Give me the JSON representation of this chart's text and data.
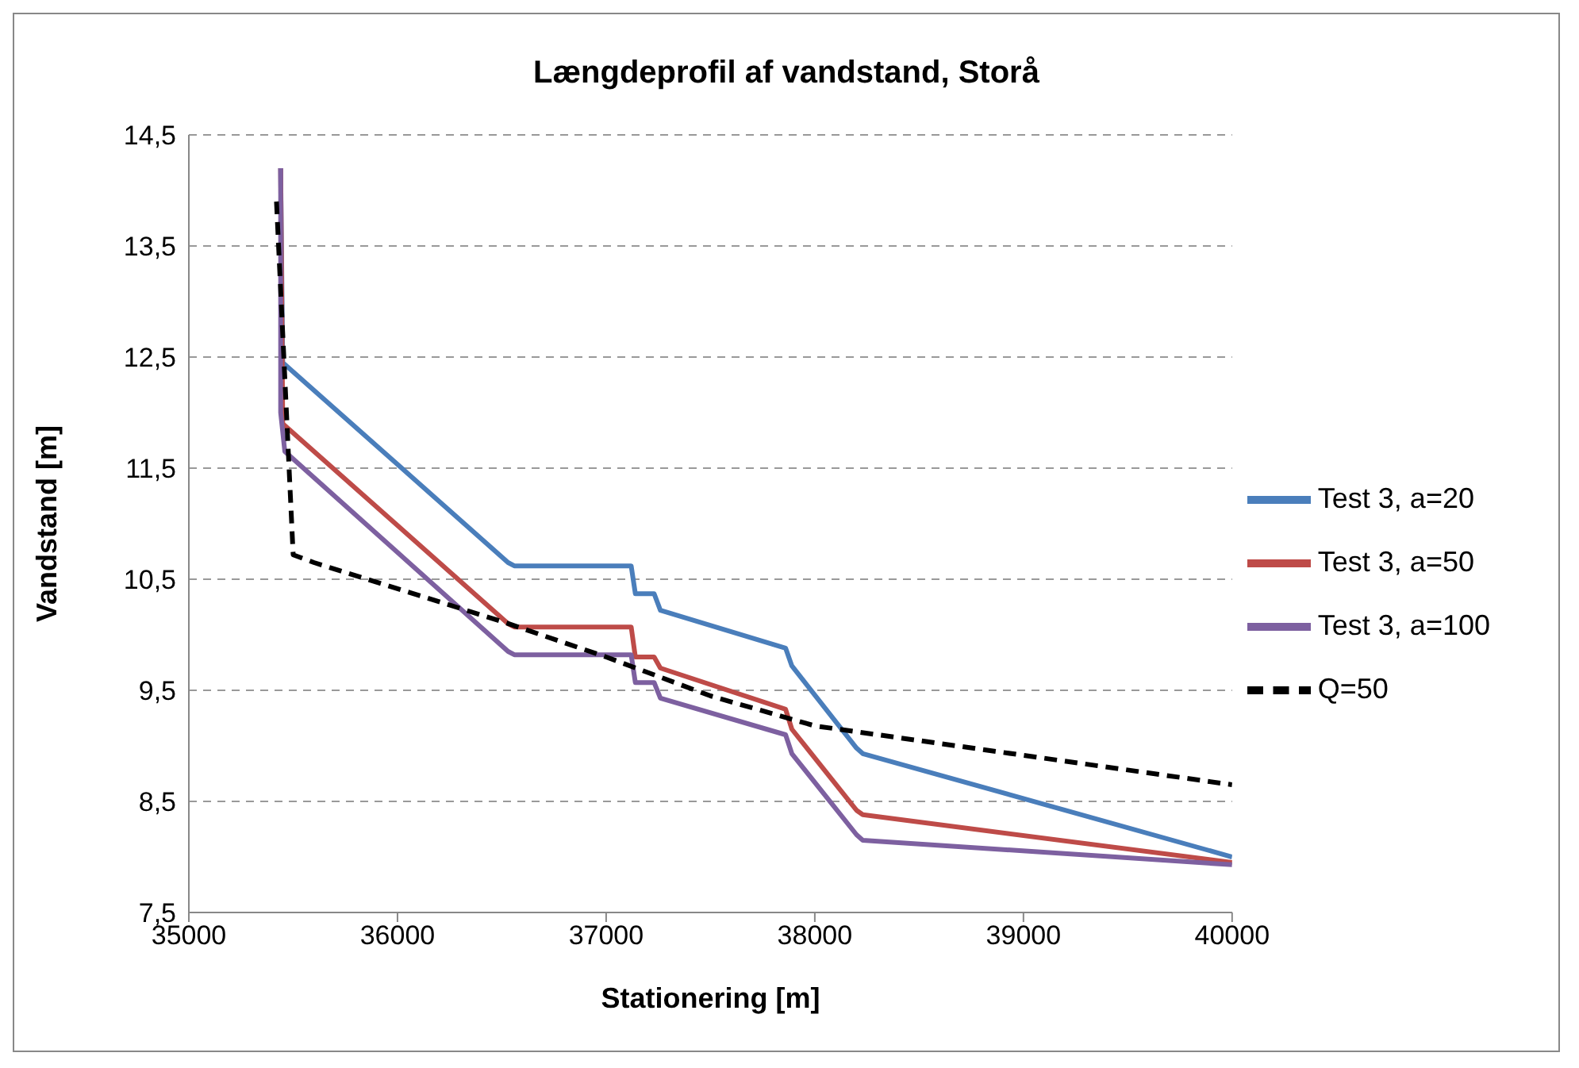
{
  "chart_data": {
    "type": "line",
    "title": "Længdeprofil af vandstand, Storå",
    "xlabel": "Stationering [m]",
    "ylabel": "Vandstand [m]",
    "xlim": [
      35000,
      40000
    ],
    "xticks": [
      35000,
      36000,
      37000,
      38000,
      39000,
      40000
    ],
    "ylim": [
      7.5,
      14.5
    ],
    "yticks": [
      {
        "value": 7.5,
        "label": "7,5"
      },
      {
        "value": 8.5,
        "label": "8,5"
      },
      {
        "value": 9.5,
        "label": "9,5"
      },
      {
        "value": 10.5,
        "label": "10,5"
      },
      {
        "value": 11.5,
        "label": "11,5"
      },
      {
        "value": 12.5,
        "label": "12,5"
      },
      {
        "value": 13.5,
        "label": "13,5"
      },
      {
        "value": 14.5,
        "label": "14,5"
      }
    ],
    "grid": "y",
    "legend": "right",
    "marker": "none",
    "series": [
      {
        "name": "Test 3, a=20",
        "color": "#4a7ebb",
        "line_style": "solid",
        "x": [
          35440,
          35450,
          36530,
          36560,
          37120,
          37140,
          37230,
          37260,
          37860,
          37890,
          38200,
          38230,
          40000
        ],
        "values": [
          14.2,
          12.45,
          10.65,
          10.62,
          10.62,
          10.37,
          10.37,
          10.22,
          9.88,
          9.72,
          8.98,
          8.93,
          8.0
        ]
      },
      {
        "name": "Test 3, a=50",
        "color": "#be4b48",
        "line_style": "solid",
        "x": [
          35440,
          35450,
          36530,
          36560,
          37120,
          37140,
          37230,
          37260,
          37860,
          37890,
          38200,
          38230,
          40000
        ],
        "values": [
          14.2,
          11.9,
          10.1,
          10.07,
          10.07,
          9.8,
          9.8,
          9.7,
          9.33,
          9.15,
          8.42,
          8.38,
          7.95
        ]
      },
      {
        "name": "Test 3, a=100",
        "color": "#7d60a0",
        "line_style": "solid",
        "x": [
          35440,
          35440,
          35460,
          36530,
          36560,
          37120,
          37140,
          37230,
          37260,
          37860,
          37890,
          38200,
          38230,
          40000
        ],
        "values": [
          14.2,
          12.0,
          11.65,
          9.85,
          9.82,
          9.82,
          9.57,
          9.57,
          9.43,
          9.1,
          8.93,
          8.2,
          8.15,
          7.93
        ]
      },
      {
        "name": "Q=50",
        "color": "#000000",
        "line_style": "dashed",
        "x": [
          35420,
          35500,
          35600,
          36500,
          37000,
          37500,
          38000,
          40000
        ],
        "values": [
          13.9,
          10.72,
          10.65,
          10.12,
          9.8,
          9.45,
          9.18,
          8.65
        ]
      }
    ]
  }
}
